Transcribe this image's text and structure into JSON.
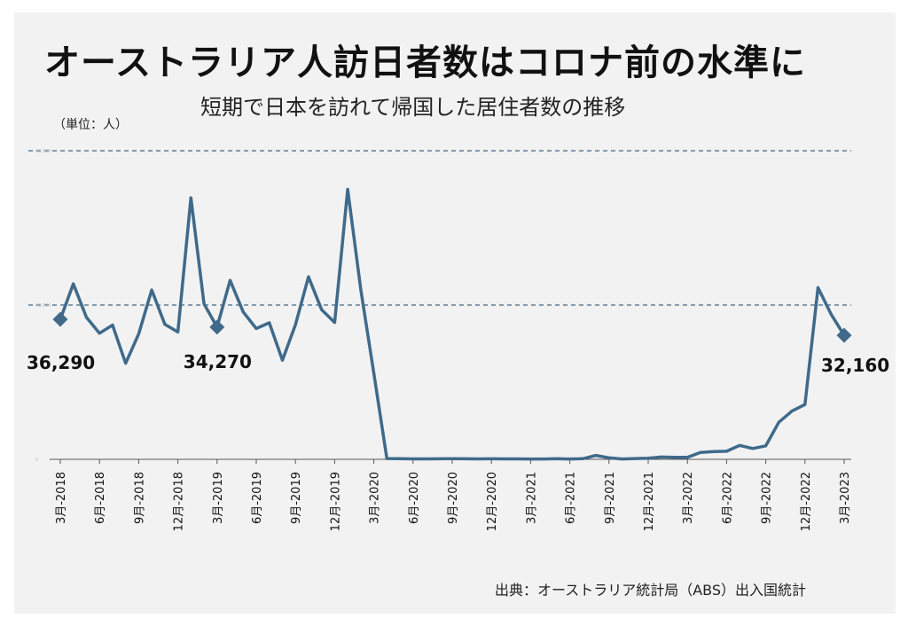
{
  "title": "オーストラリア人訪日者数はコロナ前の水準に",
  "subtitle": "短期で日本を訪れて帰国した居住者数の推移",
  "unit": "（単位：人）",
  "source": "出典：オーストラリア統計局（ABS）出入国統計",
  "colors": {
    "line": "#3f6a8a",
    "grid": "#3f6a8a",
    "panel": "#f2f2f2"
  },
  "chart_data": {
    "type": "line",
    "title": "短期で日本を訪れて帰国した居住者数の推移",
    "ylabel": "（単位：人）",
    "ylim": [
      0,
      80000
    ],
    "y_gridlines": [
      40000,
      80000
    ],
    "y_tick_labels": [
      "0",
      "40,000",
      "80,000"
    ],
    "x_tick_labels": [
      "3月-2018",
      "6月-2018",
      "9月-2018",
      "12月-2018",
      "3月-2019",
      "6月-2019",
      "9月-2019",
      "12月-2019",
      "3月-2020",
      "6月-2020",
      "9月-2020",
      "12月-2020",
      "3月-2021",
      "6月-2021",
      "9月-2021",
      "12月-2021",
      "3月-2022",
      "6月-2022",
      "9月-2022",
      "12月-2022",
      "3月-2023"
    ],
    "x": [
      "2018-03",
      "2018-04",
      "2018-05",
      "2018-06",
      "2018-07",
      "2018-08",
      "2018-09",
      "2018-10",
      "2018-11",
      "2018-12",
      "2019-01",
      "2019-02",
      "2019-03",
      "2019-04",
      "2019-05",
      "2019-06",
      "2019-07",
      "2019-08",
      "2019-09",
      "2019-10",
      "2019-11",
      "2019-12",
      "2020-01",
      "2020-02",
      "2020-03",
      "2020-04",
      "2020-05",
      "2020-06",
      "2020-07",
      "2020-08",
      "2020-09",
      "2020-10",
      "2020-11",
      "2020-12",
      "2021-01",
      "2021-02",
      "2021-03",
      "2021-04",
      "2021-05",
      "2021-06",
      "2021-07",
      "2021-08",
      "2021-09",
      "2021-10",
      "2021-11",
      "2021-12",
      "2022-01",
      "2022-02",
      "2022-03",
      "2022-04",
      "2022-05",
      "2022-06",
      "2022-07",
      "2022-08",
      "2022-09",
      "2022-10",
      "2022-11",
      "2022-12",
      "2023-01",
      "2023-02",
      "2023-03"
    ],
    "series": [
      {
        "values": [
          36290,
          45500,
          36800,
          32700,
          34800,
          24900,
          32500,
          43900,
          35000,
          33000,
          67800,
          40300,
          34270,
          46400,
          38200,
          33900,
          35400,
          25700,
          34900,
          47300,
          38800,
          35500,
          70000,
          44000,
          22300,
          200,
          150,
          120,
          110,
          130,
          150,
          140,
          120,
          130,
          110,
          120,
          100,
          100,
          150,
          100,
          150,
          1000,
          400,
          100,
          200,
          300,
          600,
          500,
          500,
          1800,
          2000,
          2100,
          3600,
          2800,
          3500,
          9600,
          12500,
          14200,
          44500,
          37600,
          32160
        ]
      }
    ],
    "annotations": [
      {
        "label": "36,290",
        "x": "2018-03",
        "value": 36290
      },
      {
        "label": "34,270",
        "x": "2019-03",
        "value": 34270
      },
      {
        "label": "32,160",
        "x": "2023-03",
        "value": 32160
      }
    ]
  }
}
